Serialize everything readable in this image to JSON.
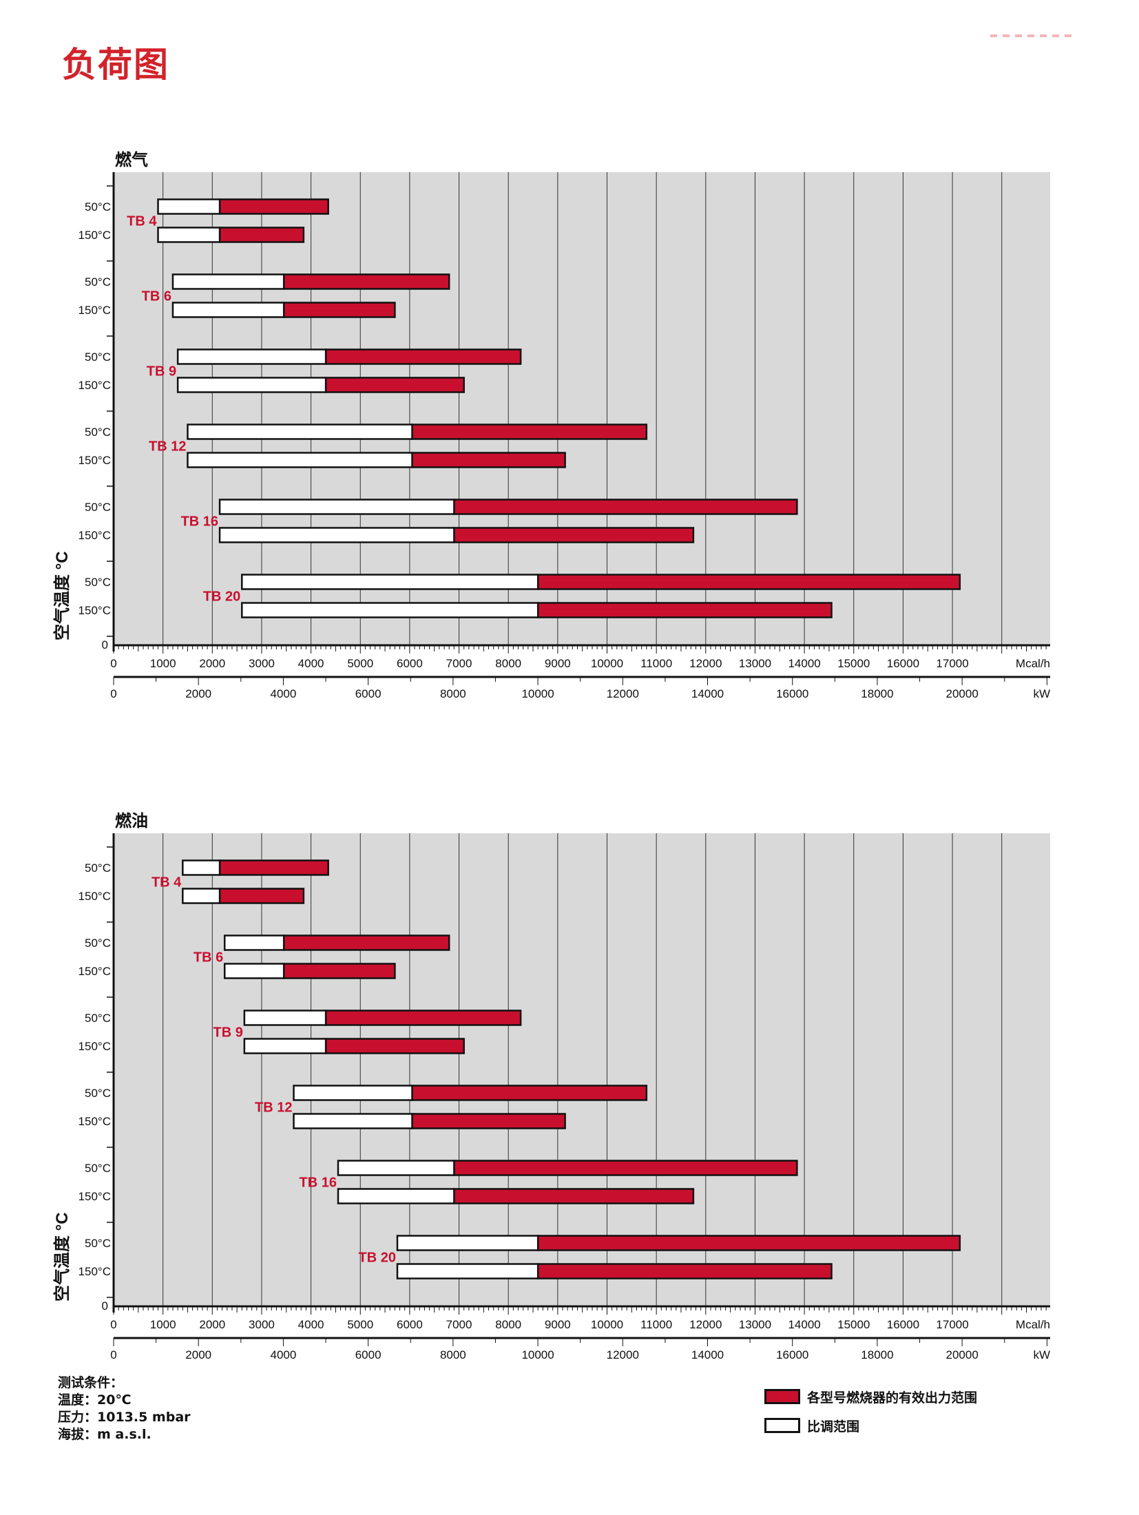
{
  "page_title": "负荷图",
  "notes": {
    "heading": "测试条件：",
    "temperature": "温度：20℃",
    "pressure": "压力：1013.5 mbar",
    "altitude": "海拔：m a.s.l."
  },
  "legend": {
    "effective": "各型号燃烧器的有效出力范围",
    "modulation": "比调范围"
  },
  "colors": {
    "red": "#c8102e",
    "plot_bg": "#d9d9d9",
    "title_red": "#d2232a"
  },
  "chart_data": [
    {
      "type": "bar",
      "title": "燃气",
      "ylabel": "空气温度 °C",
      "xlabel_top": "Mcal/h",
      "xlabel_bottom": "kW",
      "xlim": [
        0,
        19000
      ],
      "x_ticks_top": [
        "0",
        "1000",
        "2000",
        "3000",
        "4000",
        "5000",
        "6000",
        "7000",
        "8000",
        "9000",
        "10000",
        "11000",
        "12000",
        "13000",
        "14000",
        "15000",
        "16000",
        "17000"
      ],
      "x_ticks_bottom": [
        "0",
        "2000",
        "4000",
        "6000",
        "8000",
        "10000",
        "12000",
        "14000",
        "16000",
        "18000",
        "20000"
      ],
      "y_zero_label": "0",
      "grid": true,
      "series": [
        {
          "name": "TB 4",
          "rows": [
            {
              "temp": "50°C",
              "min": 900,
              "mod": 2150,
              "max": 4350
            },
            {
              "temp": "150°C",
              "min": 900,
              "mod": 2150,
              "max": 3850
            }
          ]
        },
        {
          "name": "TB 6",
          "rows": [
            {
              "temp": "50°C",
              "min": 1200,
              "mod": 3450,
              "max": 6800
            },
            {
              "temp": "150°C",
              "min": 1200,
              "mod": 3450,
              "max": 5700
            }
          ]
        },
        {
          "name": "TB 9",
          "rows": [
            {
              "temp": "50°C",
              "min": 1300,
              "mod": 4300,
              "max": 8250
            },
            {
              "temp": "150°C",
              "min": 1300,
              "mod": 4300,
              "max": 7100
            }
          ]
        },
        {
          "name": "TB 12",
          "rows": [
            {
              "temp": "50°C",
              "min": 1500,
              "mod": 6050,
              "max": 10800
            },
            {
              "temp": "150°C",
              "min": 1500,
              "mod": 6050,
              "max": 9150
            }
          ]
        },
        {
          "name": "TB 16",
          "rows": [
            {
              "temp": "50°C",
              "min": 2150,
              "mod": 6900,
              "max": 13850
            },
            {
              "temp": "150°C",
              "min": 2150,
              "mod": 6900,
              "max": 11750
            }
          ]
        },
        {
          "name": "TB 20",
          "rows": [
            {
              "temp": "50°C",
              "min": 2600,
              "mod": 8600,
              "max": 17150
            },
            {
              "temp": "150°C",
              "min": 2600,
              "mod": 8600,
              "max": 14550
            }
          ]
        }
      ]
    },
    {
      "type": "bar",
      "title": "燃油",
      "ylabel": "空气温度 °C",
      "xlabel_top": "Mcal/h",
      "xlabel_bottom": "kW",
      "xlim": [
        0,
        19000
      ],
      "x_ticks_top": [
        "0",
        "1000",
        "2000",
        "3000",
        "4000",
        "5000",
        "6000",
        "7000",
        "8000",
        "9000",
        "10000",
        "11000",
        "12000",
        "13000",
        "14000",
        "15000",
        "16000",
        "17000"
      ],
      "x_ticks_bottom": [
        "0",
        "2000",
        "4000",
        "6000",
        "8000",
        "10000",
        "12000",
        "14000",
        "16000",
        "18000",
        "20000"
      ],
      "y_zero_label": "0",
      "grid": true,
      "series": [
        {
          "name": "TB 4",
          "rows": [
            {
              "temp": "50°C",
              "min": 1400,
              "mod": 2150,
              "max": 4350
            },
            {
              "temp": "150°C",
              "min": 1400,
              "mod": 2150,
              "max": 3850
            }
          ]
        },
        {
          "name": "TB 6",
          "rows": [
            {
              "temp": "50°C",
              "min": 2250,
              "mod": 3450,
              "max": 6800
            },
            {
              "temp": "150°C",
              "min": 2250,
              "mod": 3450,
              "max": 5700
            }
          ]
        },
        {
          "name": "TB 9",
          "rows": [
            {
              "temp": "50°C",
              "min": 2650,
              "mod": 4300,
              "max": 8250
            },
            {
              "temp": "150°C",
              "min": 2650,
              "mod": 4300,
              "max": 7100
            }
          ]
        },
        {
          "name": "TB 12",
          "rows": [
            {
              "temp": "50°C",
              "min": 3650,
              "mod": 6050,
              "max": 10800
            },
            {
              "temp": "150°C",
              "min": 3650,
              "mod": 6050,
              "max": 9150
            }
          ]
        },
        {
          "name": "TB 16",
          "rows": [
            {
              "temp": "50°C",
              "min": 4550,
              "mod": 6900,
              "max": 13850
            },
            {
              "temp": "150°C",
              "min": 4550,
              "mod": 6900,
              "max": 11750
            }
          ]
        },
        {
          "name": "TB 20",
          "rows": [
            {
              "temp": "50°C",
              "min": 5750,
              "mod": 8600,
              "max": 17150
            },
            {
              "temp": "150°C",
              "min": 5750,
              "mod": 8600,
              "max": 14550
            }
          ]
        }
      ]
    }
  ]
}
